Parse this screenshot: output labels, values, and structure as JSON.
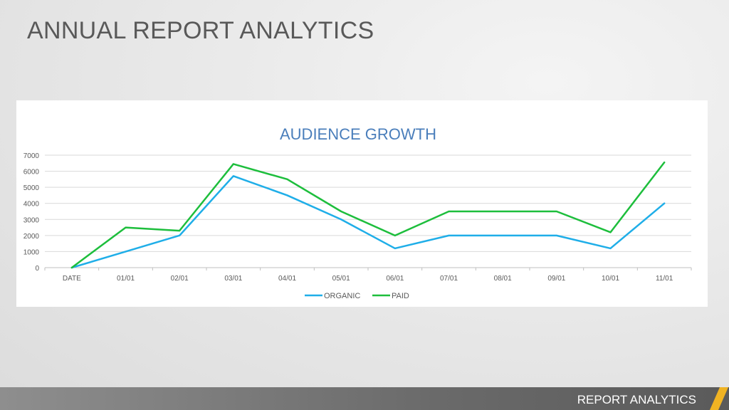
{
  "slide": {
    "title": "ANNUAL REPORT ANALYTICS",
    "footer": "REPORT ANALYTICS",
    "accent_color": "#F0B323"
  },
  "chart_data": {
    "type": "line",
    "title": "AUDIENCE GROWTH",
    "categories": [
      "DATE",
      "01/01",
      "02/01",
      "03/01",
      "04/01",
      "05/01",
      "06/01",
      "07/01",
      "08/01",
      "09/01",
      "10/01",
      "11/01"
    ],
    "ylim": [
      0,
      7000
    ],
    "yticks": [
      0,
      1000,
      2000,
      3000,
      4000,
      5000,
      6000,
      7000
    ],
    "grid": true,
    "legend_position": "bottom",
    "series": [
      {
        "name": "ORGANIC",
        "color": "#1FAEE8",
        "values": [
          0,
          1000,
          2000,
          5700,
          4500,
          3000,
          1200,
          2000,
          2000,
          2000,
          1200,
          4000
        ]
      },
      {
        "name": "PAID",
        "color": "#1DBE3C",
        "values": [
          0,
          2500,
          2300,
          6450,
          5500,
          3500,
          2000,
          3500,
          3500,
          3500,
          2200,
          6550
        ]
      }
    ]
  }
}
